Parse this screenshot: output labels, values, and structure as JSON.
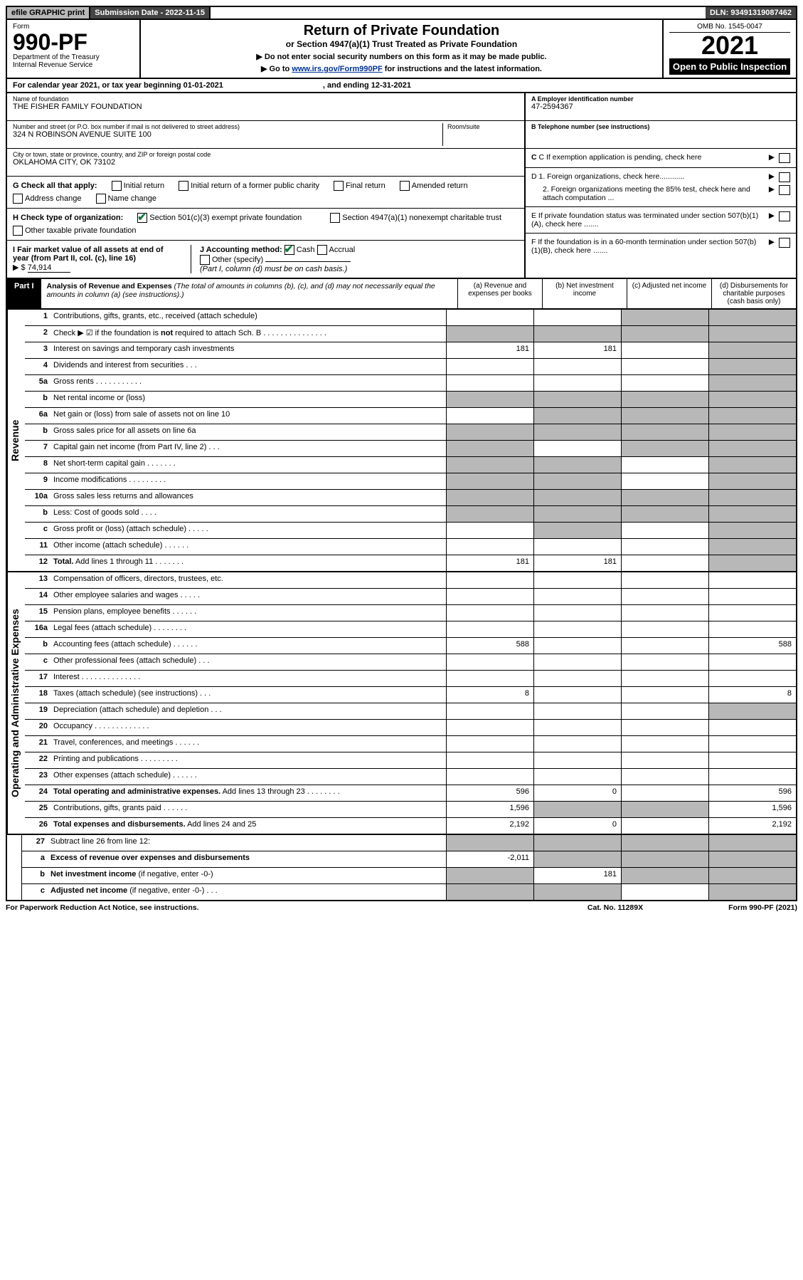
{
  "topbar": {
    "efile": "efile GRAPHIC print",
    "sub_date_label": "Submission Date - 2022-11-15",
    "dln": "DLN: 93491319087462"
  },
  "header": {
    "form_word": "Form",
    "form_num": "990-PF",
    "dept": "Department of the Treasury",
    "irs": "Internal Revenue Service",
    "title": "Return of Private Foundation",
    "subtitle": "or Section 4947(a)(1) Trust Treated as Private Foundation",
    "note1": "▶ Do not enter social security numbers on this form as it may be made public.",
    "note2_pre": "▶ Go to ",
    "note2_link": "www.irs.gov/Form990PF",
    "note2_post": " for instructions and the latest information.",
    "omb": "OMB No. 1545-0047",
    "year": "2021",
    "open": "Open to Public Inspection"
  },
  "calyear": {
    "pre": "For calendar year 2021, or tax year beginning 01-01-2021",
    "mid": ", and ending 12-31-2021"
  },
  "entity": {
    "name_label": "Name of foundation",
    "name": "THE FISHER FAMILY FOUNDATION",
    "addr_label": "Number and street (or P.O. box number if mail is not delivered to street address)",
    "addr": "324 N ROBINSON AVENUE SUITE 100",
    "room_label": "Room/suite",
    "city_label": "City or town, state or province, country, and ZIP or foreign postal code",
    "city": "OKLAHOMA CITY, OK  73102",
    "ein_label": "A Employer identification number",
    "ein": "47-2594367",
    "tel_label": "B Telephone number (see instructions)",
    "c_label": "C If exemption application is pending, check here",
    "d1_label": "D 1. Foreign organizations, check here............",
    "d2_label": "2. Foreign organizations meeting the 85% test, check here and attach computation ...",
    "e_label": "E  If private foundation status was terminated under section 507(b)(1)(A), check here .......",
    "f_label": "F  If the foundation is in a 60-month termination under section 507(b)(1)(B), check here .......",
    "g_label": "G Check all that apply:",
    "g_opts": [
      "Initial return",
      "Initial return of a former public charity",
      "Final return",
      "Amended return",
      "Address change",
      "Name change"
    ],
    "h_label": "H Check type of organization:",
    "h_opt1": "Section 501(c)(3) exempt private foundation",
    "h_opt2": "Section 4947(a)(1) nonexempt charitable trust",
    "h_opt3": "Other taxable private foundation",
    "i_label": "I Fair market value of all assets at end of year (from Part II, col. (c), line 16)",
    "i_arrow": "▶ $",
    "i_val": "74,914",
    "j_label": "J Accounting method:",
    "j_cash": "Cash",
    "j_accrual": "Accrual",
    "j_other": "Other (specify)",
    "j_note": "(Part I, column (d) must be on cash basis.)"
  },
  "part1": {
    "label": "Part I",
    "title": "Analysis of Revenue and Expenses",
    "note": "(The total of amounts in columns (b), (c), and (d) may not necessarily equal the amounts in column (a) (see instructions).)",
    "col_a": "(a)   Revenue and expenses per books",
    "col_b": "(b)   Net investment income",
    "col_c": "(c)   Adjusted net income",
    "col_d": "(d)   Disbursements for charitable purposes (cash basis only)"
  },
  "sections": {
    "revenue": "Revenue",
    "expenses": "Operating and Administrative Expenses"
  },
  "rows": [
    {
      "n": "1",
      "label": "Contributions, gifts, grants, etc., received (attach schedule)",
      "a": "",
      "b": "",
      "c": "grey",
      "d": "grey"
    },
    {
      "n": "2",
      "label": "Check ▶ ☑ if the foundation is <b>not</b> required to attach Sch. B   .  .  .  .  .  .  .  .  .  .  .  .  .  .  .",
      "a": "grey",
      "b": "grey",
      "c": "grey",
      "d": "grey",
      "html": true
    },
    {
      "n": "3",
      "label": "Interest on savings and temporary cash investments",
      "a": "181",
      "b": "181",
      "c": "",
      "d": "grey"
    },
    {
      "n": "4",
      "label": "Dividends and interest from securities   .  .  .",
      "a": "",
      "b": "",
      "c": "",
      "d": "grey"
    },
    {
      "n": "5a",
      "label": "Gross rents   .  .  .  .  .  .  .  .  .  .  .",
      "a": "",
      "b": "",
      "c": "",
      "d": "grey"
    },
    {
      "n": "b",
      "label": "Net rental income or (loss)",
      "a": "grey",
      "b": "grey",
      "c": "grey",
      "d": "grey"
    },
    {
      "n": "6a",
      "label": "Net gain or (loss) from sale of assets not on line 10",
      "a": "",
      "b": "grey",
      "c": "grey",
      "d": "grey"
    },
    {
      "n": "b",
      "label": "Gross sales price for all assets on line 6a",
      "a": "grey",
      "b": "grey",
      "c": "grey",
      "d": "grey"
    },
    {
      "n": "7",
      "label": "Capital gain net income (from Part IV, line 2)   .  .  .",
      "a": "grey",
      "b": "",
      "c": "grey",
      "d": "grey"
    },
    {
      "n": "8",
      "label": "Net short-term capital gain  .  .  .  .  .  .  .",
      "a": "grey",
      "b": "grey",
      "c": "",
      "d": "grey"
    },
    {
      "n": "9",
      "label": "Income modifications  .  .  .  .  .  .  .  .  .",
      "a": "grey",
      "b": "grey",
      "c": "",
      "d": "grey"
    },
    {
      "n": "10a",
      "label": "Gross sales less returns and allowances",
      "a": "grey",
      "b": "grey",
      "c": "grey",
      "d": "grey"
    },
    {
      "n": "b",
      "label": "Less: Cost of goods sold   .  .  .  .",
      "a": "grey",
      "b": "grey",
      "c": "grey",
      "d": "grey"
    },
    {
      "n": "c",
      "label": "Gross profit or (loss) (attach schedule)   .  .  .  .  .",
      "a": "",
      "b": "grey",
      "c": "",
      "d": "grey"
    },
    {
      "n": "11",
      "label": "Other income (attach schedule)   .  .  .  .  .  .",
      "a": "",
      "b": "",
      "c": "",
      "d": "grey"
    },
    {
      "n": "12",
      "label": "<b>Total.</b> Add lines 1 through 11  .  .  .  .  .  .  .",
      "a": "181",
      "b": "181",
      "c": "",
      "d": "grey",
      "html": true
    }
  ],
  "exp_rows": [
    {
      "n": "13",
      "label": "Compensation of officers, directors, trustees, etc.",
      "a": "",
      "b": "",
      "c": "",
      "d": ""
    },
    {
      "n": "14",
      "label": "Other employee salaries and wages   .  .  .  .  .",
      "a": "",
      "b": "",
      "c": "",
      "d": ""
    },
    {
      "n": "15",
      "label": "Pension plans, employee benefits  .  .  .  .  .  .",
      "a": "",
      "b": "",
      "c": "",
      "d": ""
    },
    {
      "n": "16a",
      "label": "Legal fees (attach schedule)  .  .  .  .  .  .  .  .",
      "a": "",
      "b": "",
      "c": "",
      "d": ""
    },
    {
      "n": "b",
      "label": "Accounting fees (attach schedule)  .  .  .  .  .  .",
      "a": "588",
      "b": "",
      "c": "",
      "d": "588"
    },
    {
      "n": "c",
      "label": "Other professional fees (attach schedule)   .  .  .",
      "a": "",
      "b": "",
      "c": "",
      "d": ""
    },
    {
      "n": "17",
      "label": "Interest  .  .  .  .  .  .  .  .  .  .  .  .  .  .",
      "a": "",
      "b": "",
      "c": "",
      "d": ""
    },
    {
      "n": "18",
      "label": "Taxes (attach schedule) (see instructions)   .  .  .",
      "a": "8",
      "b": "",
      "c": "",
      "d": "8"
    },
    {
      "n": "19",
      "label": "Depreciation (attach schedule) and depletion   .  .  .",
      "a": "",
      "b": "",
      "c": "",
      "d": "grey"
    },
    {
      "n": "20",
      "label": "Occupancy  .  .  .  .  .  .  .  .  .  .  .  .  .",
      "a": "",
      "b": "",
      "c": "",
      "d": ""
    },
    {
      "n": "21",
      "label": "Travel, conferences, and meetings  .  .  .  .  .  .",
      "a": "",
      "b": "",
      "c": "",
      "d": ""
    },
    {
      "n": "22",
      "label": "Printing and publications  .  .  .  .  .  .  .  .  .",
      "a": "",
      "b": "",
      "c": "",
      "d": ""
    },
    {
      "n": "23",
      "label": "Other expenses (attach schedule)  .  .  .  .  .  .",
      "a": "",
      "b": "",
      "c": "",
      "d": ""
    },
    {
      "n": "24",
      "label": "<b>Total operating and administrative expenses.</b> Add lines 13 through 23  .  .  .  .  .  .  .  .",
      "a": "596",
      "b": "0",
      "c": "",
      "d": "596",
      "html": true
    },
    {
      "n": "25",
      "label": "Contributions, gifts, grants paid   .  .  .  .  .  .",
      "a": "1,596",
      "b": "grey",
      "c": "grey",
      "d": "1,596"
    },
    {
      "n": "26",
      "label": "<b>Total expenses and disbursements.</b> Add lines 24 and 25",
      "a": "2,192",
      "b": "0",
      "c": "",
      "d": "2,192",
      "html": true
    }
  ],
  "final_rows": [
    {
      "n": "27",
      "label": "Subtract line 26 from line 12:",
      "a": "grey",
      "b": "grey",
      "c": "grey",
      "d": "grey"
    },
    {
      "n": "a",
      "label": "<b>Excess of revenue over expenses and disbursements</b>",
      "a": "-2,011",
      "b": "grey",
      "c": "grey",
      "d": "grey",
      "html": true
    },
    {
      "n": "b",
      "label": "<b>Net investment income</b> (if negative, enter -0-)",
      "a": "grey",
      "b": "181",
      "c": "grey",
      "d": "grey",
      "html": true
    },
    {
      "n": "c",
      "label": "<b>Adjusted net income</b> (if negative, enter -0-)   .  .  .",
      "a": "grey",
      "b": "grey",
      "c": "",
      "d": "grey",
      "html": true
    }
  ],
  "footer": {
    "left": "For Paperwork Reduction Act Notice, see instructions.",
    "mid": "Cat. No. 11289X",
    "right": "Form 990-PF (2021)"
  }
}
